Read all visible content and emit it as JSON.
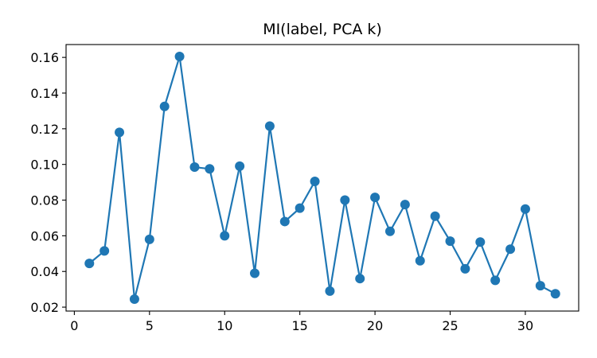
{
  "chart_data": {
    "type": "line",
    "title": "MI(label, PCA k)",
    "xlabel": "",
    "ylabel": "",
    "series": [
      {
        "color": "#1f77b4",
        "marker": "circle",
        "x": [
          1,
          2,
          3,
          4,
          5,
          6,
          7,
          8,
          9,
          10,
          11,
          12,
          13,
          14,
          15,
          16,
          17,
          18,
          19,
          20,
          21,
          22,
          23,
          24,
          25,
          26,
          27,
          28,
          29,
          30,
          31,
          32
        ],
        "y": [
          0.0445,
          0.0515,
          0.118,
          0.0245,
          0.058,
          0.1325,
          0.1605,
          0.0985,
          0.0975,
          0.06,
          0.099,
          0.039,
          0.1215,
          0.068,
          0.0755,
          0.0905,
          0.029,
          0.08,
          0.036,
          0.0815,
          0.0625,
          0.0775,
          0.046,
          0.071,
          0.057,
          0.0415,
          0.0565,
          0.035,
          0.0525,
          0.075,
          0.032,
          0.0275
        ]
      }
    ],
    "xlim": [
      -0.55,
      33.55
    ],
    "ylim": [
      0.0178,
      0.1672
    ],
    "xticks": [
      0,
      5,
      10,
      15,
      20,
      25,
      30
    ],
    "xtick_labels": [
      "0",
      "5",
      "10",
      "15",
      "20",
      "25",
      "30"
    ],
    "yticks": [
      0.02,
      0.04,
      0.06,
      0.08,
      0.1,
      0.12,
      0.14,
      0.16
    ],
    "ytick_labels": [
      "0.02",
      "0.04",
      "0.06",
      "0.08",
      "0.10",
      "0.12",
      "0.14",
      "0.16"
    ],
    "grid": false,
    "legend": "none"
  }
}
